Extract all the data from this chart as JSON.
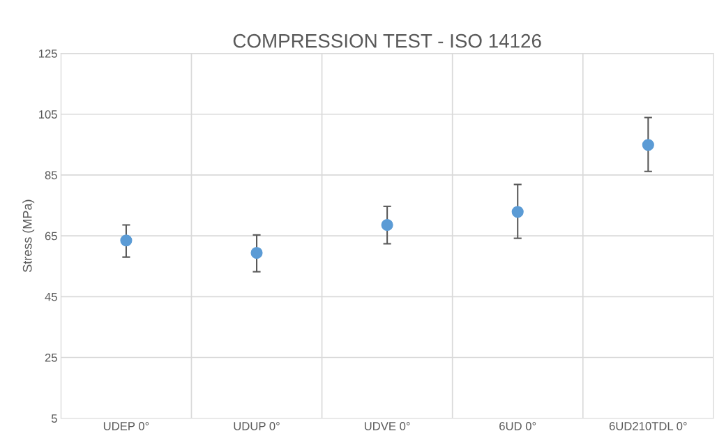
{
  "chart_data": {
    "type": "scatter",
    "title": "COMPRESSION TEST - ISO 14126",
    "ylabel": "Stress (MPa)",
    "categories": [
      "UDEP 0°",
      "UDUP 0°",
      "UDVE 0°",
      "6UD 0°",
      "6UD210TDL 0°"
    ],
    "values": [
      63.5,
      59.4,
      68.6,
      72.9,
      94.9
    ],
    "errors": [
      [
        58.0,
        68.6
      ],
      [
        53.2,
        65.3
      ],
      [
        62.4,
        74.7
      ],
      [
        64.2,
        81.9
      ],
      [
        86.2,
        103.9
      ]
    ],
    "color": "#5b9bd5",
    "marker": "circle",
    "ylim": [
      5,
      125
    ],
    "yticks": [
      5,
      25,
      45,
      65,
      85,
      105,
      125
    ],
    "grid": true
  }
}
